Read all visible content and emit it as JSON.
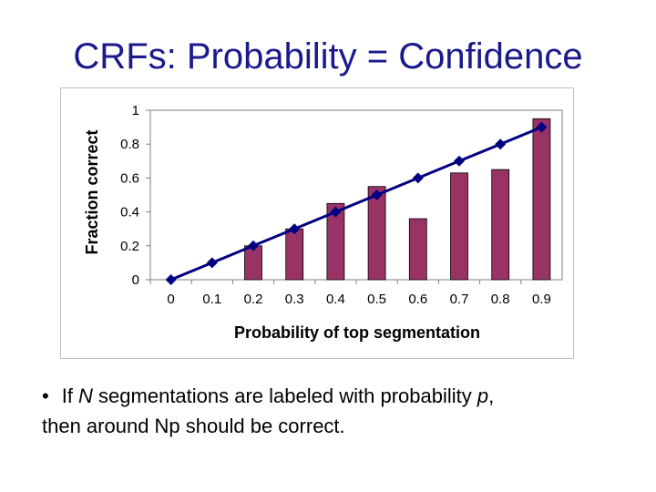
{
  "slide": {
    "title": "CRFs: Probability = Confidence",
    "bullet": {
      "marker": "•",
      "text_1": "If ",
      "var_n": "N",
      "text_2": " segmentations are labeled with probability ",
      "var_p": "p",
      "text_3": ",",
      "text_4": "then around Np should be correct."
    }
  },
  "chart_data": {
    "type": "bar",
    "xlabel": "Probability of top segmentation",
    "ylabel": "Fraction correct",
    "categories": [
      "0",
      "0.1",
      "0.2",
      "0.3",
      "0.4",
      "0.5",
      "0.6",
      "0.7",
      "0.8",
      "0.9"
    ],
    "y_ticks": [
      "0",
      "0.2",
      "0.4",
      "0.6",
      "0.8",
      "1"
    ],
    "ylim": [
      0,
      1
    ],
    "grid": false,
    "legend": "none",
    "series": [
      {
        "kind": "bar",
        "color": "#993366",
        "values": [
          0,
          0,
          0.2,
          0.3,
          0.45,
          0.55,
          0.36,
          0.63,
          0.65,
          0.95
        ]
      },
      {
        "kind": "line",
        "color": "#000080",
        "marker": "diamond",
        "values": [
          0,
          0.1,
          0.2,
          0.3,
          0.4,
          0.5,
          0.6,
          0.7,
          0.8,
          0.9
        ]
      }
    ]
  }
}
